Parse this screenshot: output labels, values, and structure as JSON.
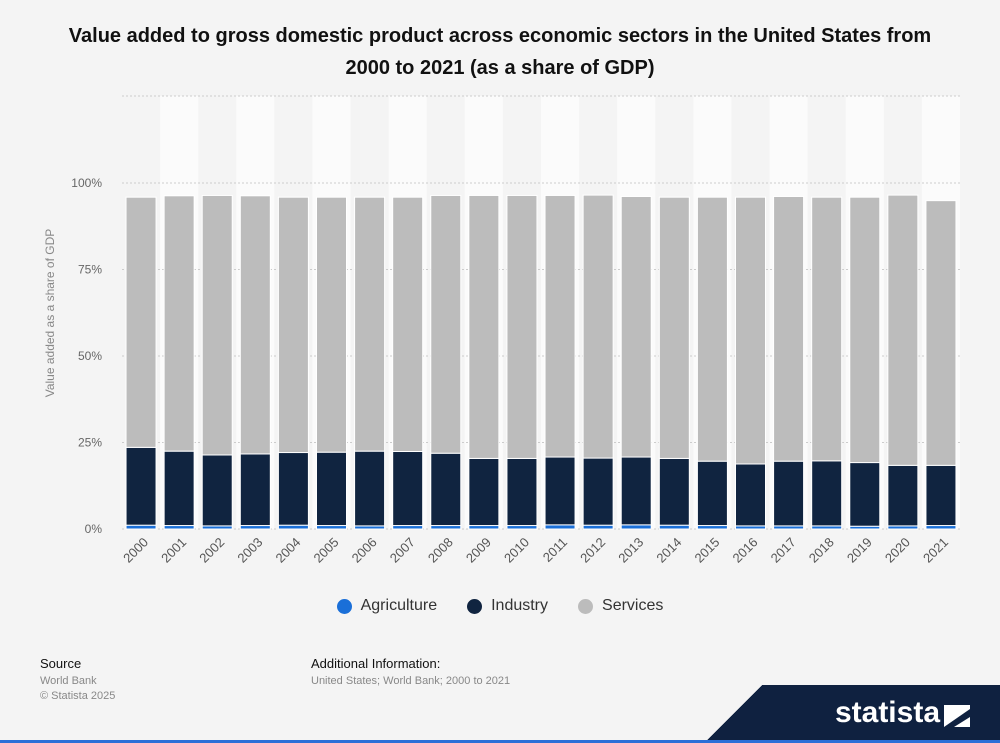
{
  "chart_data": {
    "type": "bar",
    "stacked": true,
    "title": "Value added to gross domestic product across economic sectors in the United States from 2000 to 2021 (as a share of GDP)",
    "xlabel": "",
    "ylabel": "Value added as a share of GDP",
    "ylim": [
      0,
      100
    ],
    "yticks": [
      "0%",
      "25%",
      "50%",
      "75%",
      "100%"
    ],
    "grid": true,
    "legend_position": "bottom",
    "categories": [
      "2000",
      "2001",
      "2002",
      "2003",
      "2004",
      "2005",
      "2006",
      "2007",
      "2008",
      "2009",
      "2010",
      "2011",
      "2012",
      "2013",
      "2014",
      "2015",
      "2016",
      "2017",
      "2018",
      "2019",
      "2020",
      "2021"
    ],
    "series": [
      {
        "name": "Agriculture",
        "color": "#1a6fd8",
        "values": [
          1.1,
          1.0,
          0.9,
          1.0,
          1.1,
          1.0,
          0.9,
          1.0,
          1.0,
          1.0,
          1.0,
          1.2,
          1.1,
          1.2,
          1.1,
          1.0,
          0.9,
          0.9,
          0.9,
          0.8,
          0.9,
          1.0
        ]
      },
      {
        "name": "Industry",
        "color": "#102440",
        "values": [
          22.5,
          21.5,
          20.5,
          20.7,
          21.0,
          21.2,
          21.6,
          21.4,
          20.9,
          19.4,
          19.4,
          19.6,
          19.4,
          19.6,
          19.3,
          18.6,
          17.9,
          18.7,
          18.8,
          18.4,
          17.5,
          17.4
        ]
      },
      {
        "name": "Services",
        "color": "#bcbcbc",
        "values": [
          72.3,
          73.8,
          75.0,
          74.6,
          73.8,
          73.7,
          73.4,
          73.5,
          74.5,
          76.0,
          76.0,
          75.6,
          76.0,
          75.3,
          75.5,
          76.3,
          77.1,
          76.5,
          76.2,
          76.7,
          78.1,
          76.5
        ]
      }
    ]
  },
  "footer": {
    "source_label": "Source",
    "source_value": "World Bank",
    "copyright": "© Statista 2025",
    "additional_label": "Additional Information:",
    "additional_value": "United States; World Bank; 2000 to 2021"
  },
  "brand": {
    "name": "statista",
    "colors": {
      "navy": "#0f2140",
      "blue": "#2c6fd8"
    }
  }
}
